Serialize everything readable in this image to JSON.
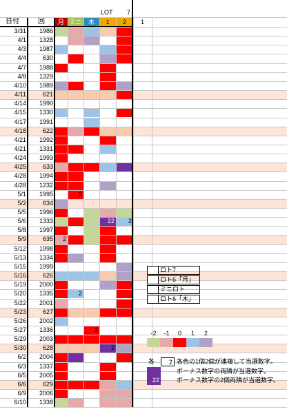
{
  "headers": {
    "date": "日付",
    "draw": "回",
    "lot": "LOT",
    "seven": "7",
    "one": "1",
    "cols": [
      {
        "label": "月",
        "bg": "#c00000",
        "fg": "#ffffff"
      },
      {
        "label": "ミニ",
        "bg": "#a9c15a",
        "fg": "#ffffff"
      },
      {
        "label": "木",
        "bg": "#2a8dbd",
        "fg": "#ffffff"
      },
      {
        "label": "1",
        "bg": "#f0a800",
        "fg": "#000000"
      },
      {
        "label": "2",
        "bg": "#f0a800",
        "fg": "#000000"
      }
    ]
  },
  "palette": {
    "R": "#ff0000",
    "L": "#f8cbad",
    "G": "#c4d79b",
    "P": "#e6a8a8",
    "B": "#9dc3e6",
    "V": "#b1a0c7",
    "D": "#7030a0",
    "W": "#ffffff",
    "band": "#fce4d6"
  },
  "rows": [
    {
      "date": "3/31",
      "no": "1986",
      "c": [
        "G",
        "P",
        "B",
        "L",
        "R"
      ]
    },
    {
      "date": "4/1",
      "no": "1328",
      "c": [
        "W",
        "P",
        "V",
        "W",
        "R"
      ]
    },
    {
      "date": "4/3",
      "no": "1987",
      "c": [
        "B",
        "W",
        "W",
        "B",
        "R"
      ]
    },
    {
      "date": "4/4",
      "no": "630",
      "c": [
        "W",
        "R",
        "W",
        "V",
        "R"
      ]
    },
    {
      "date": "4/7",
      "no": "1988",
      "c": [
        "R",
        "W",
        "W",
        "R",
        "W"
      ]
    },
    {
      "date": "4/8",
      "no": "1329",
      "c": [
        "W",
        "W",
        "W",
        "R",
        "W"
      ]
    },
    {
      "date": "4/10",
      "no": "1989",
      "c": [
        "V",
        "R",
        "W",
        "R",
        "V"
      ]
    },
    {
      "date": "4/11",
      "no": "621",
      "c": [
        "L",
        "L",
        "L",
        "L",
        "R"
      ]
    },
    {
      "date": "4/14",
      "no": "1990",
      "c": [
        "W",
        "W",
        "W",
        "W",
        "W"
      ]
    },
    {
      "date": "4/15",
      "no": "1330",
      "c": [
        "B",
        "W",
        "B",
        "W",
        "R"
      ]
    },
    {
      "date": "4/17",
      "no": "1991",
      "c": [
        "W",
        "W",
        "B",
        "W",
        "W"
      ]
    },
    {
      "date": "4/18",
      "no": "622",
      "c": [
        "R",
        "P",
        "R",
        "L",
        "L"
      ]
    },
    {
      "date": "4/21",
      "no": "1992",
      "c": [
        "R",
        "W",
        "W",
        "R",
        "W"
      ]
    },
    {
      "date": "4/21",
      "no": "1331",
      "c": [
        "R",
        "R",
        "W",
        "B",
        "W"
      ]
    },
    {
      "date": "4/24",
      "no": "1993",
      "c": [
        "R",
        "W",
        "W",
        "W",
        "W"
      ]
    },
    {
      "date": "4/25",
      "no": "633",
      "c": [
        "P",
        "R",
        "R",
        "B",
        "D"
      ]
    },
    {
      "date": "4/28",
      "no": "1994",
      "c": [
        "R",
        "R",
        "W",
        "W",
        "W"
      ]
    },
    {
      "date": "4/28",
      "no": "1232",
      "c": [
        "R",
        "R",
        "W",
        "V",
        "W"
      ]
    },
    {
      "date": "5/1",
      "no": "1995",
      "c": [
        "W",
        "R",
        "W",
        "W",
        "W"
      ]
    },
    {
      "date": "5/2",
      "no": "634",
      "c": [
        "V",
        "W",
        "W",
        "W",
        "W"
      ]
    },
    {
      "date": "5/5",
      "no": "1996",
      "c": [
        "R",
        "W",
        "G",
        "P",
        "G"
      ]
    },
    {
      "date": "5/6",
      "no": "1333",
      "c": [
        "G",
        "R",
        "G",
        "D",
        "B"
      ]
    },
    {
      "date": "5/8",
      "no": "1997",
      "c": [
        "R",
        "W",
        "G",
        "R",
        "W"
      ]
    },
    {
      "date": "5/9",
      "no": "635",
      "c": [
        "P",
        "R",
        "G",
        "R",
        "R"
      ]
    },
    {
      "date": "5/12",
      "no": "1998",
      "c": [
        "R",
        "W",
        "W",
        "R",
        "W"
      ]
    },
    {
      "date": "5/13",
      "no": "1334",
      "c": [
        "R",
        "V",
        "W",
        "R",
        "W"
      ]
    },
    {
      "date": "5/15",
      "no": "1999",
      "c": [
        "W",
        "W",
        "W",
        "W",
        "V"
      ]
    },
    {
      "date": "5/16",
      "no": "626",
      "c": [
        "B",
        "B",
        "B",
        "L",
        "V"
      ]
    },
    {
      "date": "5/19",
      "no": "2000",
      "c": [
        "R",
        "W",
        "W",
        "V",
        "R"
      ]
    },
    {
      "date": "5/20",
      "no": "1335",
      "c": [
        "R",
        "B",
        "W",
        "W",
        "R"
      ]
    },
    {
      "date": "5/22",
      "no": "2001",
      "c": [
        "P",
        "W",
        "W",
        "W",
        "R"
      ]
    },
    {
      "date": "5/23",
      "no": "627",
      "c": [
        "R",
        "L",
        "L",
        "R",
        "R"
      ]
    },
    {
      "date": "5/26",
      "no": "2002",
      "c": [
        "B",
        "W",
        "W",
        "W",
        "W"
      ]
    },
    {
      "date": "5/27",
      "no": "1336",
      "c": [
        "W",
        "W",
        "R",
        "W",
        "W"
      ]
    },
    {
      "date": "5/29",
      "no": "2003",
      "c": [
        "R",
        "R",
        "R",
        "R",
        "R"
      ]
    },
    {
      "date": "5/30",
      "no": "628",
      "c": [
        "L",
        "L",
        "L",
        "D",
        "V"
      ]
    },
    {
      "date": "6/2",
      "no": "2004",
      "c": [
        "R",
        "D",
        "W",
        "W",
        "R"
      ]
    },
    {
      "date": "6/3",
      "no": "1337",
      "c": [
        "R",
        "W",
        "W",
        "R",
        "W"
      ]
    },
    {
      "date": "6/5",
      "no": "2005",
      "c": [
        "R",
        "W",
        "W",
        "R",
        "W"
      ]
    },
    {
      "date": "6/6",
      "no": "629",
      "c": [
        "R",
        "R",
        "R",
        "P",
        "B"
      ]
    },
    {
      "date": "6/9",
      "no": "2006",
      "c": [
        "R",
        "W",
        "W",
        "P",
        "P"
      ]
    },
    {
      "date": "6/10",
      "no": "1338",
      "c": [
        "G",
        "P",
        "W",
        "P",
        "P"
      ]
    }
  ],
  "band_rows": [
    7,
    11,
    15,
    19,
    23,
    27,
    31,
    35,
    39
  ],
  "cell_numbers": [
    {
      "row": 18,
      "col": 1,
      "text": "2"
    },
    {
      "row": 21,
      "col": 3,
      "text": "22"
    },
    {
      "row": 21,
      "col": 4,
      "text": "2"
    },
    {
      "row": 23,
      "col": 0,
      "text": "2"
    },
    {
      "row": 29,
      "col": 1,
      "text": "2"
    },
    {
      "row": 33,
      "col": 2,
      "text": "2"
    },
    {
      "row": 35,
      "col": 3,
      "text": "2"
    }
  ],
  "legend": [
    {
      "label": "ロト7"
    },
    {
      "label": "ロト6「月」"
    },
    {
      "label": "ミニロト"
    },
    {
      "label": "ロト6「木」"
    }
  ],
  "scale": [
    {
      "label": "-2",
      "color": "#c4d79b"
    },
    {
      "label": "-1",
      "color": "#e6a8a8"
    },
    {
      "label": "0",
      "color": "#ff0000"
    },
    {
      "label": "1",
      "color": "#9dc3e6"
    },
    {
      "label": "2",
      "color": "#b1a0c7"
    }
  ],
  "notes": [
    {
      "lead": "各",
      "box": "2",
      "text": "各色の1個2個が連複して当選数字。"
    },
    {
      "lead": "",
      "box": "",
      "text": "ボーナス数字の両隣が当選数字。"
    },
    {
      "lead": "",
      "box": "22",
      "text": "ボーナス数字の2個両隣が当選数字。"
    }
  ]
}
